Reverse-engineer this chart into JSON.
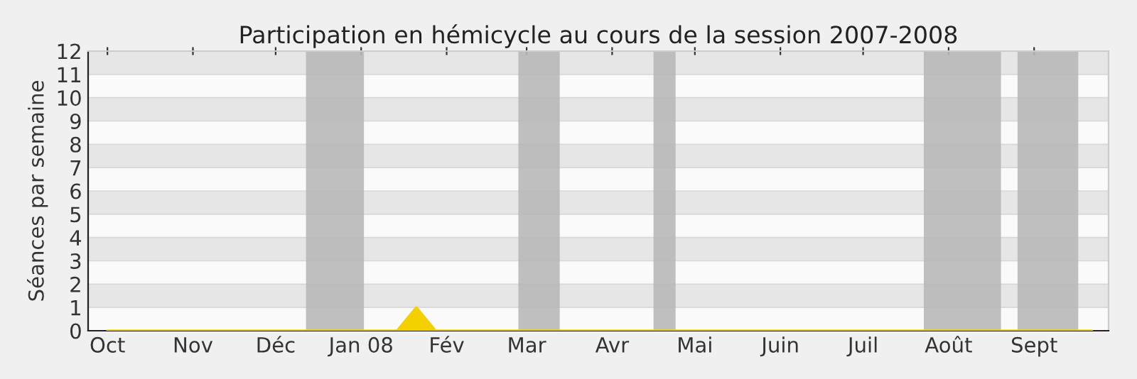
{
  "chart_data": {
    "type": "area",
    "title": "Participation en hémicycle au cours de la session 2007-2008",
    "ylabel": "Séances par semaine",
    "x": [
      "2007-10-01",
      "2007-10-08",
      "2007-10-15",
      "2007-10-22",
      "2007-10-29",
      "2007-11-05",
      "2007-11-12",
      "2007-11-19",
      "2007-11-26",
      "2007-12-03",
      "2007-12-10",
      "2007-12-17",
      "2007-12-24",
      "2007-12-31",
      "2008-01-07",
      "2008-01-14",
      "2008-01-21",
      "2008-01-28",
      "2008-02-04",
      "2008-02-11",
      "2008-02-18",
      "2008-02-25",
      "2008-03-03",
      "2008-03-10",
      "2008-03-17",
      "2008-03-24",
      "2008-03-31",
      "2008-04-07",
      "2008-04-14",
      "2008-04-21",
      "2008-04-28",
      "2008-05-05",
      "2008-05-12",
      "2008-05-19",
      "2008-05-26",
      "2008-06-02",
      "2008-06-09",
      "2008-06-16",
      "2008-06-23",
      "2008-06-30",
      "2008-07-07",
      "2008-07-14",
      "2008-07-21",
      "2008-07-28",
      "2008-08-04",
      "2008-08-11",
      "2008-08-18",
      "2008-08-25",
      "2008-09-01",
      "2008-09-08",
      "2008-09-15",
      "2008-09-22"
    ],
    "series": [
      {
        "color": "#f5d000",
        "values": [
          0,
          0,
          0,
          0,
          0,
          0,
          0,
          0,
          0,
          0,
          0,
          0,
          0,
          0,
          0,
          0,
          1,
          0,
          0,
          0,
          0,
          0,
          0,
          0,
          0,
          0,
          0,
          0,
          0,
          0,
          0,
          0,
          0,
          0,
          0,
          0,
          0,
          0,
          0,
          0,
          0,
          0,
          0,
          0,
          0,
          0,
          0,
          0,
          0,
          0,
          0,
          0
        ]
      }
    ],
    "xlim": [
      "2007-09-24",
      "2008-09-28"
    ],
    "xticks": [
      {
        "value": "2007-10-01",
        "label": "Oct"
      },
      {
        "value": "2007-11-01",
        "label": "Nov"
      },
      {
        "value": "2007-12-01",
        "label": "Déc"
      },
      {
        "value": "2008-01-01",
        "label": "Jan 08"
      },
      {
        "value": "2008-02-01",
        "label": "Fév"
      },
      {
        "value": "2008-03-01",
        "label": "Mar"
      },
      {
        "value": "2008-04-01",
        "label": "Avr"
      },
      {
        "value": "2008-05-01",
        "label": "Mai"
      },
      {
        "value": "2008-06-01",
        "label": "Juin"
      },
      {
        "value": "2008-07-01",
        "label": "Juil"
      },
      {
        "value": "2008-08-01",
        "label": "Août"
      },
      {
        "value": "2008-09-01",
        "label": "Sept"
      }
    ],
    "ylim": [
      0,
      12
    ],
    "yticks": [
      0,
      1,
      2,
      3,
      4,
      5,
      6,
      7,
      8,
      9,
      10,
      11,
      12
    ],
    "bands": [
      {
        "axis": "x",
        "from": "2007-12-12",
        "to": "2008-01-02",
        "color": "#b8b8b8"
      },
      {
        "axis": "x",
        "from": "2008-02-27",
        "to": "2008-03-13",
        "color": "#b8b8b8"
      },
      {
        "axis": "x",
        "from": "2008-04-16",
        "to": "2008-04-24",
        "color": "#b8b8b8"
      },
      {
        "axis": "x",
        "from": "2008-07-23",
        "to": "2008-08-20",
        "color": "#b8b8b8"
      },
      {
        "axis": "x",
        "from": "2008-08-26",
        "to": "2008-09-17",
        "color": "#b8b8b8"
      }
    ],
    "grid": "y",
    "legend": false
  }
}
